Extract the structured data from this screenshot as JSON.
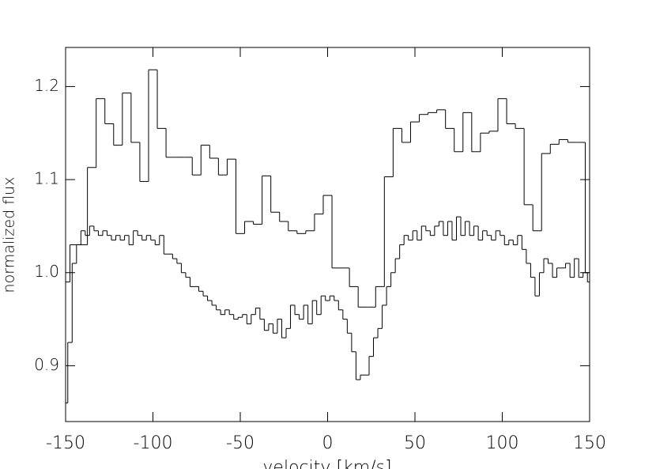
{
  "chart_data": {
    "type": "step",
    "x_label": "velocity [km/s]",
    "y_label": "normalized flux",
    "xlim": [
      -150,
      150
    ],
    "xticks": [
      -150,
      -100,
      -50,
      0,
      50,
      100,
      150
    ],
    "ylim": [
      0.84,
      1.242
    ],
    "yticks": [
      0.9,
      {
        "value": 1,
        "label": "1.0"
      },
      1.1,
      1.2
    ],
    "color": "#000000",
    "series": [
      {
        "x": [
          -150,
          -145,
          -140,
          -135,
          -130,
          -125,
          -120,
          -115,
          -110,
          -105,
          -100,
          -95,
          -90,
          -85,
          -80,
          -75,
          -70,
          -65,
          -60,
          -55,
          -50,
          -45,
          -40,
          -35,
          -30,
          -25,
          -20,
          -15,
          -10,
          -5,
          0,
          5,
          10,
          15,
          20,
          25,
          30,
          35,
          40,
          45,
          50,
          55,
          60,
          65,
          70,
          75,
          80,
          85,
          90,
          95,
          100,
          105,
          110,
          115,
          120,
          125,
          130,
          135,
          140,
          145,
          150
        ],
        "values": [
          0.99,
          1.03,
          1.03,
          1.113,
          1.187,
          1.16,
          1.137,
          1.193,
          1.14,
          1.098,
          1.218,
          1.155,
          1.124,
          1.124,
          1.124,
          1.105,
          1.137,
          1.123,
          1.105,
          1.122,
          1.042,
          1.055,
          1.052,
          1.104,
          1.065,
          1.055,
          1.045,
          1.042,
          1.045,
          1.063,
          1.083,
          1.005,
          1.005,
          0.985,
          0.963,
          0.963,
          0.985,
          1.103,
          1.155,
          1.14,
          1.162,
          1.17,
          1.172,
          1.175,
          1.155,
          1.13,
          1.172,
          1.13,
          1.15,
          1.152,
          1.187,
          1.16,
          1.155,
          1.073,
          1.045,
          1.128,
          1.138,
          1.143,
          1.14,
          1.14,
          1.0
        ]
      },
      {
        "x": [
          -150,
          -147.5,
          -145,
          -142.5,
          -140,
          -137.5,
          -135,
          -132.5,
          -130,
          -127.5,
          -125,
          -122.5,
          -120,
          -117.5,
          -115,
          -112.5,
          -110,
          -107.5,
          -105,
          -102.5,
          -100,
          -97.5,
          -95,
          -92.5,
          -90,
          -87.5,
          -85,
          -82.5,
          -80,
          -77.5,
          -75,
          -72.5,
          -70,
          -67.5,
          -65,
          -62.5,
          -60,
          -57.5,
          -55,
          -52.5,
          -50,
          -47.5,
          -45,
          -42.5,
          -40,
          -37.5,
          -35,
          -32.5,
          -30,
          -27.5,
          -25,
          -22.5,
          -20,
          -17.5,
          -15,
          -12.5,
          -10,
          -7.5,
          -5,
          -2.5,
          0,
          2.5,
          5,
          7.5,
          10,
          12.5,
          15,
          17.5,
          20,
          22.5,
          25,
          27.5,
          30,
          32.5,
          35,
          37.5,
          40,
          42.5,
          45,
          47.5,
          50,
          52.5,
          55,
          57.5,
          60,
          62.5,
          65,
          67.5,
          70,
          72.5,
          75,
          77.5,
          80,
          82.5,
          85,
          87.5,
          90,
          92.5,
          95,
          97.5,
          100,
          102.5,
          105,
          107.5,
          110,
          112.5,
          115,
          117.5,
          120,
          122.5,
          125,
          127.5,
          130,
          132.5,
          135,
          137.5,
          140,
          142.5,
          145,
          147.5,
          150
        ],
        "values": [
          0.86,
          0.925,
          1.01,
          1.03,
          1.045,
          1.04,
          1.05,
          1.045,
          1.04,
          1.045,
          1.04,
          1.035,
          1.04,
          1.035,
          1.04,
          1.03,
          1.045,
          1.04,
          1.035,
          1.04,
          1.035,
          1.03,
          1.04,
          1.02,
          1.02,
          1.015,
          1.01,
          1.0,
          0.995,
          0.985,
          0.985,
          0.98,
          0.975,
          0.97,
          0.965,
          0.96,
          0.955,
          0.96,
          0.955,
          0.95,
          0.952,
          0.955,
          0.945,
          0.955,
          0.962,
          0.95,
          0.938,
          0.945,
          0.935,
          0.95,
          0.93,
          0.94,
          0.965,
          0.955,
          0.95,
          0.965,
          0.945,
          0.97,
          0.955,
          0.975,
          0.97,
          0.975,
          0.97,
          0.96,
          0.95,
          0.935,
          0.915,
          0.885,
          0.89,
          0.89,
          0.91,
          0.93,
          0.94,
          0.965,
          0.985,
          1.0,
          1.015,
          1.03,
          1.04,
          1.035,
          1.045,
          1.035,
          1.05,
          1.045,
          1.04,
          1.05,
          1.055,
          1.04,
          1.055,
          1.035,
          1.06,
          1.04,
          1.055,
          1.04,
          1.05,
          1.035,
          1.045,
          1.04,
          1.035,
          1.045,
          1.04,
          1.03,
          1.035,
          1.03,
          1.04,
          1.025,
          1.01,
          0.995,
          0.975,
          1.0,
          1.015,
          1.01,
          0.995,
          1.005,
          1.005,
          1.01,
          0.995,
          1.015,
          0.995,
          1.0,
          0.99
        ]
      }
    ]
  }
}
